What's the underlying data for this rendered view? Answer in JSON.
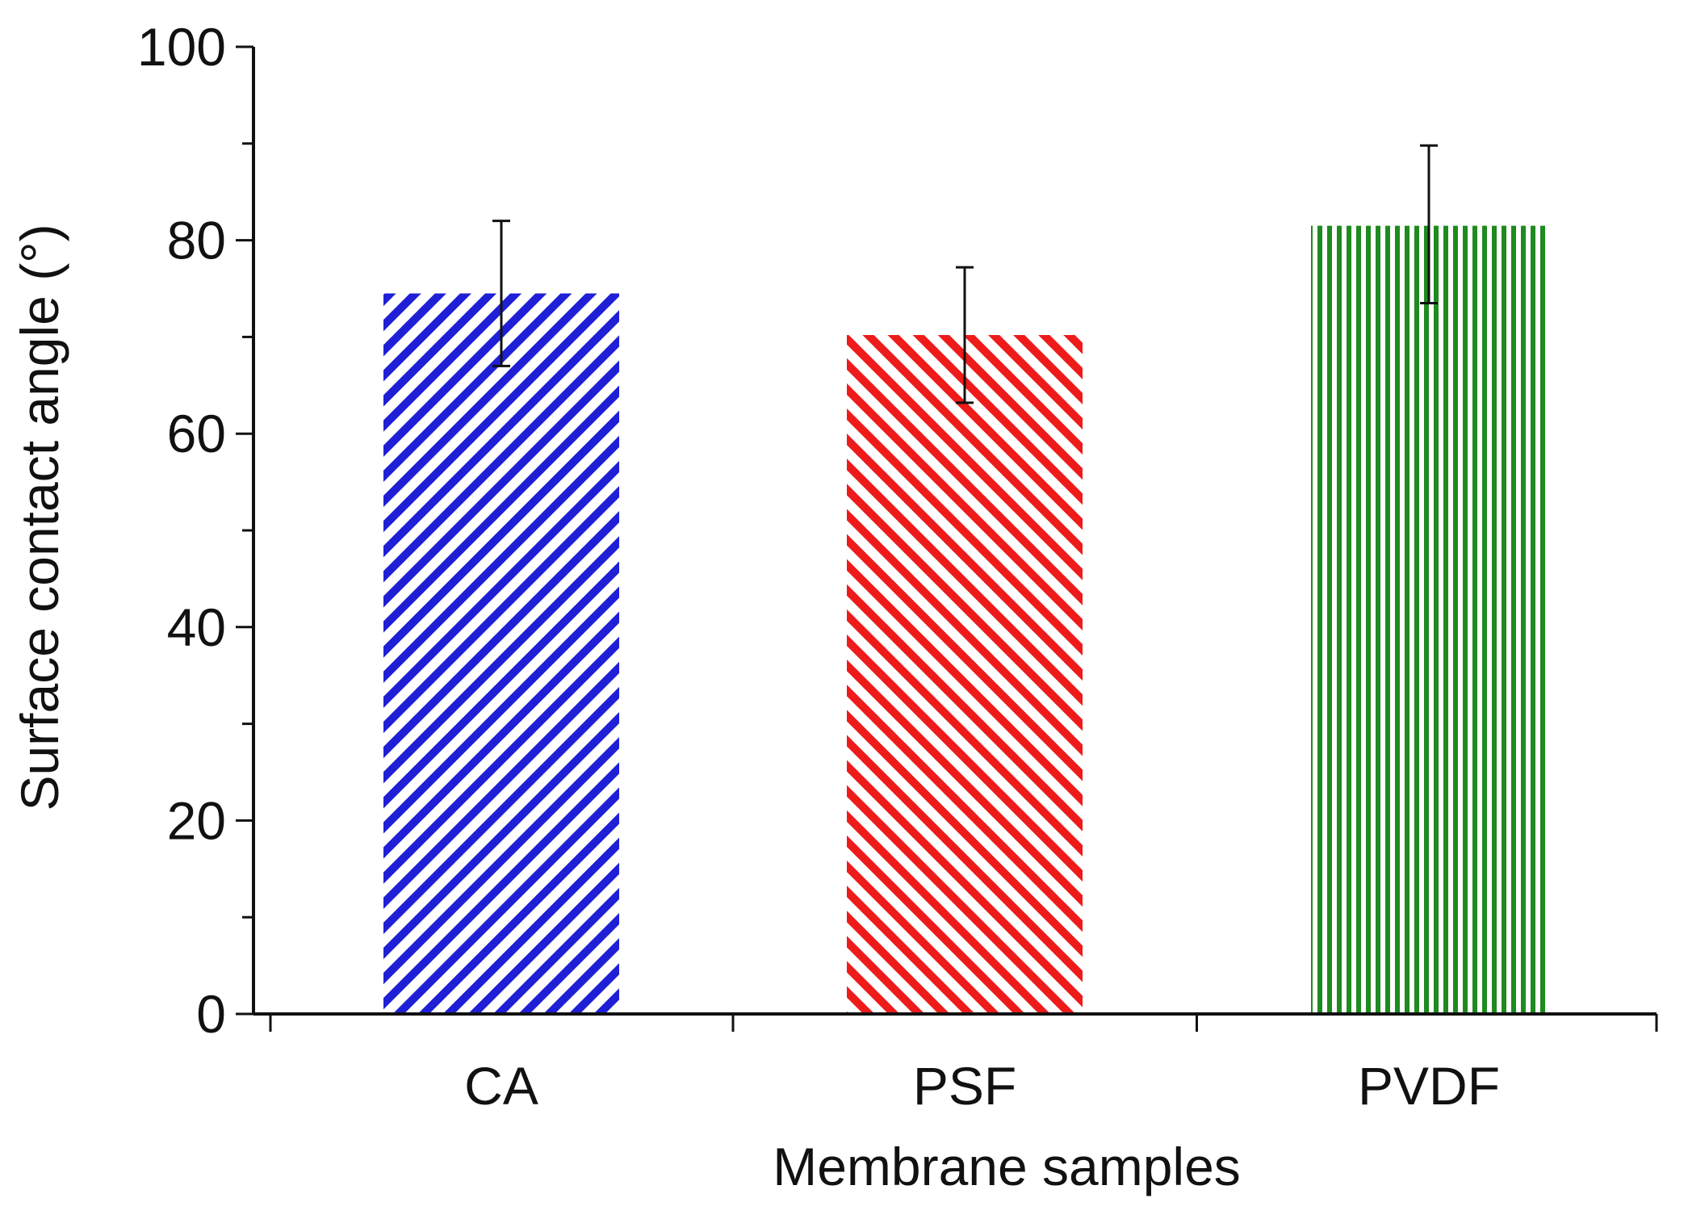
{
  "chart_data": {
    "type": "bar",
    "title": "",
    "xlabel": "Membrane samples",
    "ylabel": "Surface contact angle (°)",
    "ylim": [
      0,
      100
    ],
    "yticks": [
      0,
      20,
      40,
      60,
      80,
      100
    ],
    "minor_tick_step": 10,
    "grid": false,
    "legend": "none",
    "categories": [
      "CA",
      "PSF",
      "PVDF"
    ],
    "values": [
      74.5,
      70.2,
      81.5
    ],
    "error_low": [
      67.0,
      63.2,
      73.5
    ],
    "error_high": [
      82.0,
      77.2,
      89.8
    ],
    "bar_patterns": [
      "diagonal-up",
      "diagonal-down",
      "vertical"
    ],
    "bar_colors": [
      "#1f1fd6",
      "#ee1b1b",
      "#1f8a1f"
    ]
  }
}
